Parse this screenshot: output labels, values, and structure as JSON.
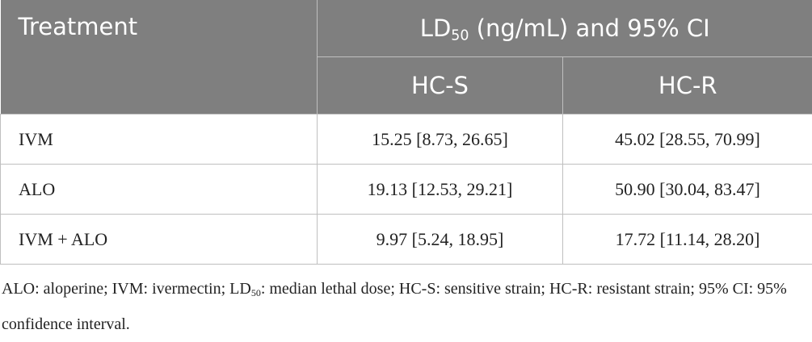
{
  "table": {
    "header": {
      "treatment": "Treatment",
      "group": {
        "prefix": "LD",
        "sub": "50",
        "rest": " (ng/mL) and 95% CI"
      },
      "columns": [
        "HC-S",
        "HC-R"
      ]
    },
    "rows": [
      [
        "IVM",
        "15.25 [8.73, 26.65]",
        "45.02 [28.55, 70.99]"
      ],
      [
        "ALO",
        "19.13 [12.53, 29.21]",
        "50.90 [30.04, 83.47]"
      ],
      [
        "IVM + ALO",
        "9.97 [5.24, 18.95]",
        "17.72 [11.14, 28.20]"
      ]
    ]
  },
  "footnote": {
    "prefix": "ALO: aloperine; IVM: ivermectin; LD",
    "sub": "50",
    "rest": ": median lethal dose; HC-S: sensitive strain; HC-R: resistant strain; 95% CI: 95% confidence interval."
  }
}
